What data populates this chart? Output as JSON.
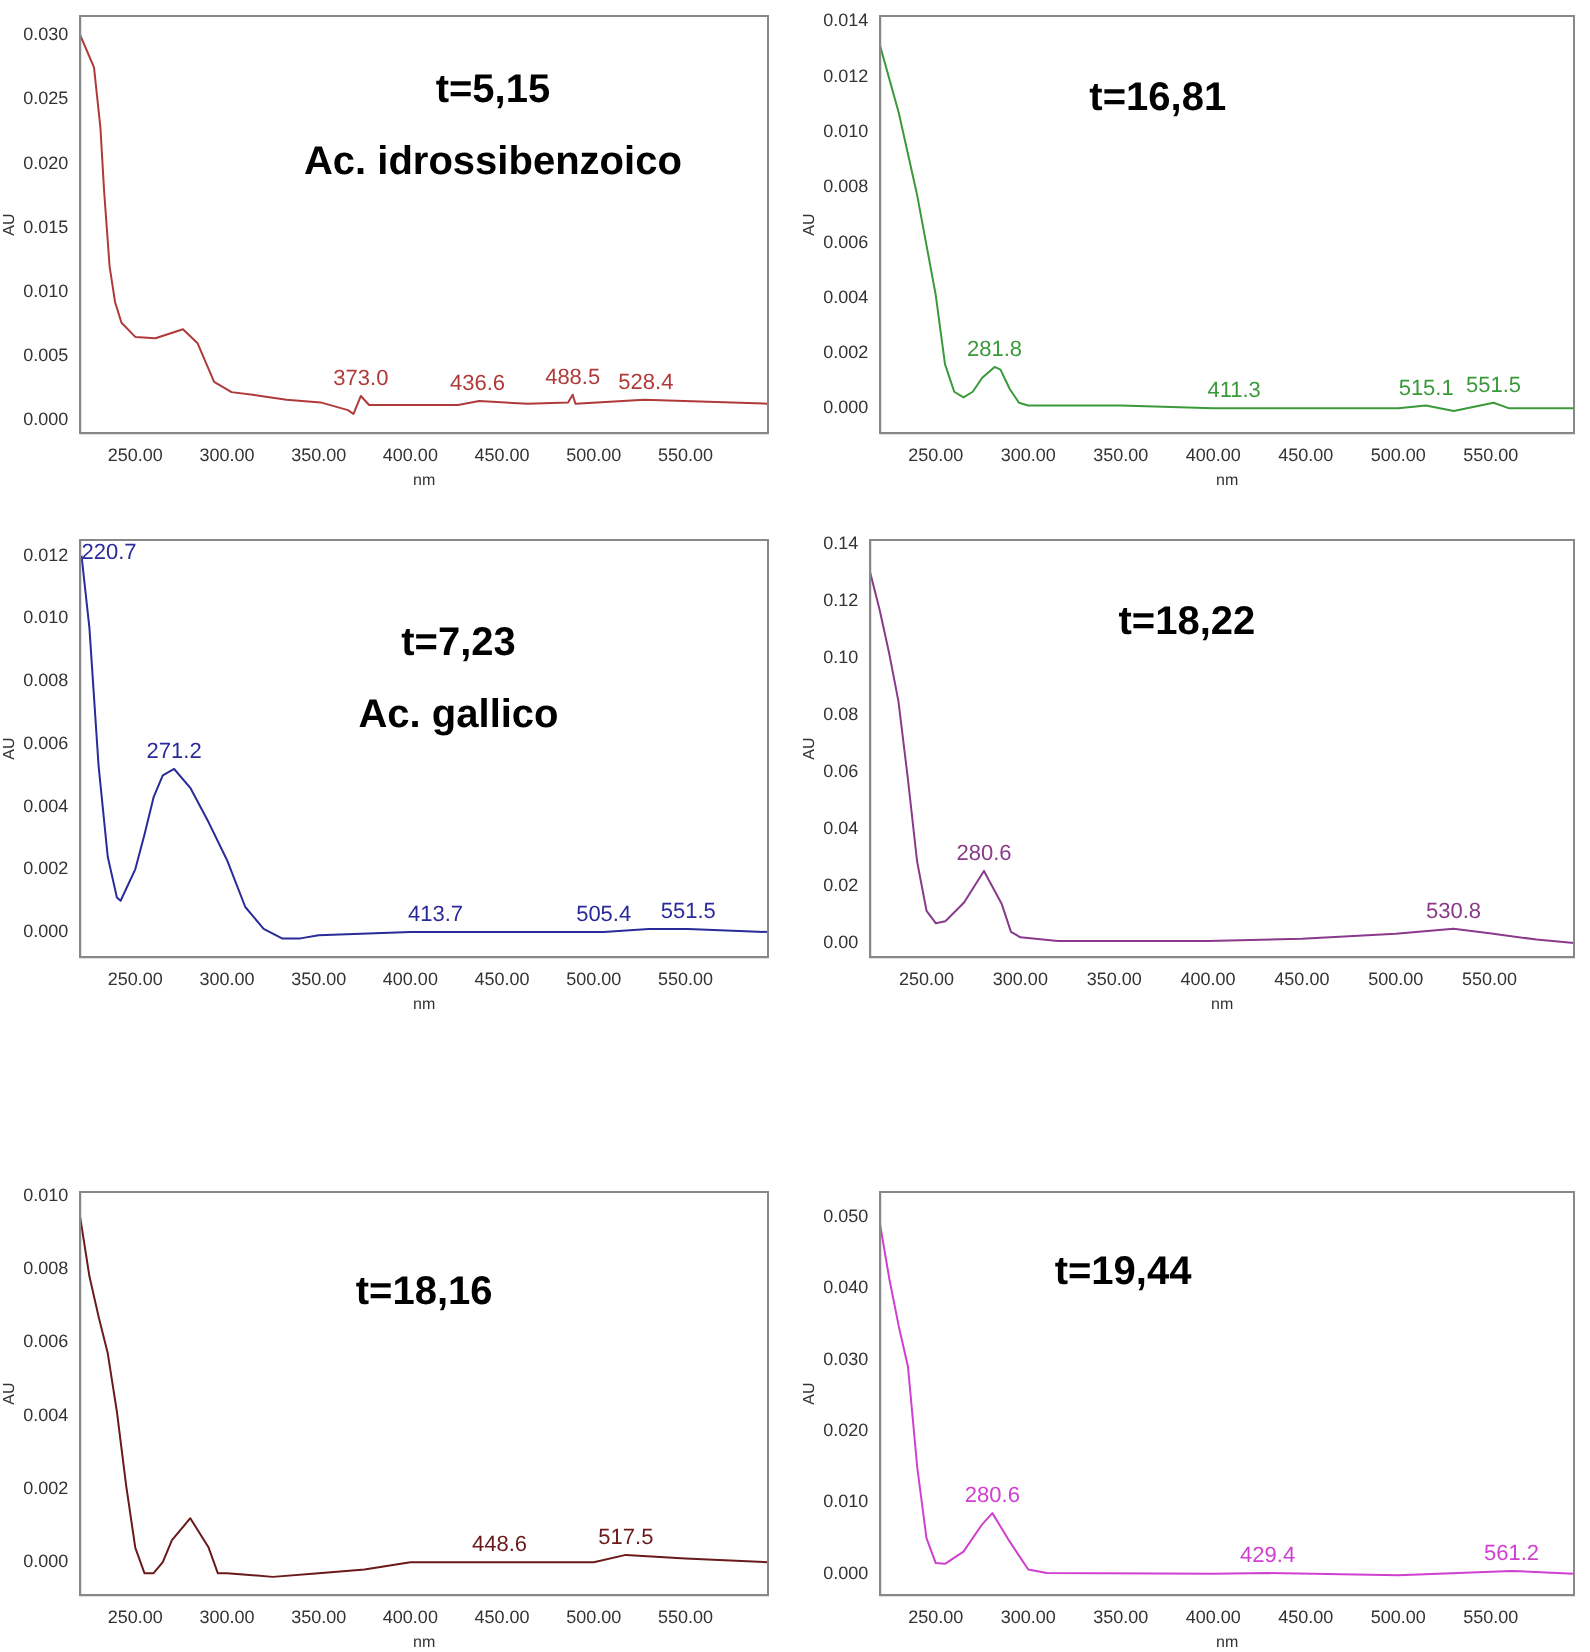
{
  "chart_data": [
    {
      "type": "line",
      "xlabel": "nm",
      "ylabel": "AU",
      "grid": false,
      "legend": false,
      "marker": "none",
      "xlim": [
        220,
        595
      ],
      "ylim": [
        -0.001,
        0.0315
      ],
      "xticks": [
        {
          "value": 250,
          "label": "250.00"
        },
        {
          "value": 300,
          "label": "300.00"
        },
        {
          "value": 350,
          "label": "350.00"
        },
        {
          "value": 400,
          "label": "400.00"
        },
        {
          "value": 450,
          "label": "450.00"
        },
        {
          "value": 500,
          "label": "500.00"
        },
        {
          "value": 550,
          "label": "550.00"
        }
      ],
      "yticks": [
        {
          "value": 0,
          "label": "0.000"
        },
        {
          "value": 0.005,
          "label": "0.005"
        },
        {
          "value": 0.01,
          "label": "0.010"
        },
        {
          "value": 0.015,
          "label": "0.015"
        },
        {
          "value": 0.02,
          "label": "0.020"
        },
        {
          "value": 0.025,
          "label": "0.025"
        },
        {
          "value": 0.03,
          "label": "0.030"
        }
      ],
      "annotations": [
        "t=5,15",
        "Ac. idrossibenzoico",
        {
          "text": "373.0",
          "x": 373,
          "y": 0.0019
        },
        {
          "text": "436.6",
          "x": 436.6,
          "y": 0.0015
        },
        {
          "text": "488.5",
          "x": 488.5,
          "y": 0.002
        },
        {
          "text": "528.4",
          "x": 528.4,
          "y": 0.0016
        }
      ],
      "series": [
        {
          "color": "#b03a3a",
          "x": [
            220,
            227.5,
            231,
            233,
            236,
            239,
            242.5,
            250,
            261,
            276,
            284,
            293,
            302.5,
            314,
            332.5,
            351,
            366,
            369,
            373,
            377.5,
            426,
            437.5,
            464,
            486,
            488.5,
            490,
            527.5,
            595
          ],
          "values": [
            0.03,
            0.0275,
            0.0228,
            0.0179,
            0.012,
            0.0092,
            0.0076,
            0.0065,
            0.0064,
            0.0071,
            0.006,
            0.003,
            0.0022,
            0.002,
            0.0016,
            0.0014,
            0.0008,
            0.0005,
            0.0019,
            0.0012,
            0.0012,
            0.0015,
            0.0013,
            0.0014,
            0.002,
            0.0013,
            0.0016,
            0.0013
          ]
        }
      ]
    },
    {
      "type": "line",
      "xlabel": "nm",
      "ylabel": "AU",
      "grid": false,
      "legend": false,
      "marker": "none",
      "xlim": [
        220,
        595
      ],
      "ylim": [
        -0.0009,
        0.0142
      ],
      "xticks": [
        {
          "value": 250,
          "label": "250.00"
        },
        {
          "value": 300,
          "label": "300.00"
        },
        {
          "value": 350,
          "label": "350.00"
        },
        {
          "value": 400,
          "label": "400.00"
        },
        {
          "value": 450,
          "label": "450.00"
        },
        {
          "value": 500,
          "label": "500.00"
        },
        {
          "value": 550,
          "label": "550.00"
        }
      ],
      "yticks": [
        {
          "value": 0,
          "label": "0.000"
        },
        {
          "value": 0.002,
          "label": "0.002"
        },
        {
          "value": 0.004,
          "label": "0.004"
        },
        {
          "value": 0.006,
          "label": "0.006"
        },
        {
          "value": 0.008,
          "label": "0.008"
        },
        {
          "value": 0.01,
          "label": "0.010"
        },
        {
          "value": 0.012,
          "label": "0.012"
        },
        {
          "value": 0.014,
          "label": "0.014"
        }
      ],
      "annotations": [
        "t=16,81",
        {
          "text": "281.8",
          "x": 281.8,
          "y": 0.0015
        },
        {
          "text": "411.3",
          "x": 411.3,
          "y": 0
        },
        {
          "text": "515.1",
          "x": 515.1,
          "y": 0.0001
        },
        {
          "text": "551.5",
          "x": 551.5,
          "y": 0.0002
        }
      ],
      "series": [
        {
          "color": "#3a9a3a",
          "x": [
            220,
            230,
            240,
            250,
            255,
            260,
            265,
            270,
            275,
            281.8,
            285,
            290,
            295,
            300,
            350,
            400,
            450,
            500,
            515,
            530,
            551.5,
            560,
            595
          ],
          "values": [
            0.0131,
            0.0107,
            0.0077,
            0.0041,
            0.0016,
            0.0006,
            0.0004,
            0.0006,
            0.0011,
            0.0015,
            0.0014,
            0.0007,
            0.0002,
            0.0001,
            0.0001,
            0,
            0,
            0,
            0.0001,
            -0.0001,
            0.0002,
            0,
            0
          ]
        }
      ]
    },
    {
      "type": "line",
      "xlabel": "nm",
      "ylabel": "AU",
      "grid": false,
      "legend": false,
      "marker": "none",
      "xlim": [
        220,
        595
      ],
      "ylim": [
        -0.0008,
        0.0125
      ],
      "xticks": [
        {
          "value": 250,
          "label": "250.00"
        },
        {
          "value": 300,
          "label": "300.00"
        },
        {
          "value": 350,
          "label": "350.00"
        },
        {
          "value": 400,
          "label": "400.00"
        },
        {
          "value": 450,
          "label": "450.00"
        },
        {
          "value": 500,
          "label": "500.00"
        },
        {
          "value": 550,
          "label": "550.00"
        }
      ],
      "yticks": [
        {
          "value": 0,
          "label": "0.000"
        },
        {
          "value": 0.002,
          "label": "0.002"
        },
        {
          "value": 0.004,
          "label": "0.004"
        },
        {
          "value": 0.006,
          "label": "0.006"
        },
        {
          "value": 0.008,
          "label": "0.008"
        },
        {
          "value": 0.01,
          "label": "0.010"
        },
        {
          "value": 0.012,
          "label": "0.012"
        }
      ],
      "annotations": [
        "t=7,23",
        "Ac. gallico",
        {
          "text": "220.7",
          "x": 220.7,
          "y": 0.012
        },
        {
          "text": "271.2",
          "x": 271.2,
          "y": 0.0052
        },
        {
          "text": "413.7",
          "x": 413.7,
          "y": 0
        },
        {
          "text": "505.4",
          "x": 505.4,
          "y": 0
        },
        {
          "text": "551.5",
          "x": 551.5,
          "y": 0.0001
        }
      ],
      "series": [
        {
          "color": "#2a2a9a",
          "x": [
            220.7,
            225,
            230,
            235,
            240,
            242,
            250,
            255,
            260,
            265,
            271.2,
            280,
            290,
            300,
            310,
            320,
            330,
            340,
            350,
            400,
            413.7,
            450,
            500,
            505.4,
            530,
            551.5,
            595
          ],
          "values": [
            0.012,
            0.0097,
            0.0053,
            0.0024,
            0.0011,
            0.001,
            0.002,
            0.0031,
            0.0043,
            0.005,
            0.0052,
            0.0046,
            0.0035,
            0.0023,
            0.0008,
            0.0001,
            -0.0002,
            -0.0002,
            -0.0001,
            0,
            0,
            0,
            0,
            0,
            0.0001,
            0.0001,
            0
          ]
        }
      ]
    },
    {
      "type": "line",
      "xlabel": "nm",
      "ylabel": "AU",
      "grid": false,
      "legend": false,
      "marker": "none",
      "xlim": [
        220,
        595
      ],
      "ylim": [
        -0.005,
        0.1415
      ],
      "xticks": [
        {
          "value": 250,
          "label": "250.00"
        },
        {
          "value": 300,
          "label": "300.00"
        },
        {
          "value": 350,
          "label": "350.00"
        },
        {
          "value": 400,
          "label": "400.00"
        },
        {
          "value": 450,
          "label": "450.00"
        },
        {
          "value": 500,
          "label": "500.00"
        },
        {
          "value": 550,
          "label": "550.00"
        }
      ],
      "yticks": [
        {
          "value": 0,
          "label": "0.00"
        },
        {
          "value": 0.02,
          "label": "0.02"
        },
        {
          "value": 0.04,
          "label": "0.04"
        },
        {
          "value": 0.06,
          "label": "0.06"
        },
        {
          "value": 0.08,
          "label": "0.08"
        },
        {
          "value": 0.1,
          "label": "0.10"
        },
        {
          "value": 0.12,
          "label": "0.12"
        },
        {
          "value": 0.14,
          "label": "0.14"
        }
      ],
      "annotations": [
        "t=18,22",
        {
          "text": "280.6",
          "x": 280.6,
          "y": 0.0253
        },
        {
          "text": "530.8",
          "x": 530.8,
          "y": 0.005
        }
      ],
      "series": [
        {
          "color": "#8a3a8a",
          "x": [
            220,
            225,
            230,
            235,
            240,
            245,
            250,
            255,
            260,
            270,
            280.6,
            290,
            295,
            300,
            320,
            400,
            450,
            500,
            530.8,
            550,
            575,
            595
          ],
          "values": [
            0.13,
            0.117,
            0.102,
            0.085,
            0.058,
            0.0285,
            0.0113,
            0.0069,
            0.0076,
            0.0142,
            0.0253,
            0.0138,
            0.0039,
            0.002,
            0.0007,
            0.0007,
            0.0015,
            0.0032,
            0.005,
            0.0034,
            0.0012,
            0
          ]
        }
      ]
    },
    {
      "type": "line",
      "xlabel": "nm",
      "ylabel": "AU",
      "grid": false,
      "legend": false,
      "marker": "none",
      "xlim": [
        220,
        595
      ],
      "ylim": [
        -0.0009,
        0.0101
      ],
      "xticks": [
        {
          "value": 250,
          "label": "250.00"
        },
        {
          "value": 300,
          "label": "300.00"
        },
        {
          "value": 350,
          "label": "350.00"
        },
        {
          "value": 400,
          "label": "400.00"
        },
        {
          "value": 450,
          "label": "450.00"
        },
        {
          "value": 500,
          "label": "500.00"
        },
        {
          "value": 550,
          "label": "550.00"
        }
      ],
      "yticks": [
        {
          "value": 0,
          "label": "0.000"
        },
        {
          "value": 0.002,
          "label": "0.002"
        },
        {
          "value": 0.004,
          "label": "0.004"
        },
        {
          "value": 0.006,
          "label": "0.006"
        },
        {
          "value": 0.008,
          "label": "0.008"
        },
        {
          "value": 0.01,
          "label": "0.010"
        }
      ],
      "annotations": [
        "t=18,16",
        {
          "text": "448.6",
          "x": 448.6,
          "y": 0
        },
        {
          "text": "517.5",
          "x": 517.5,
          "y": 0.0002
        }
      ],
      "series": [
        {
          "color": "#6a1a1a",
          "x": [
            220,
            225,
            230,
            235,
            240,
            245,
            250,
            255,
            260,
            265,
            270,
            280,
            290,
            295,
            300,
            325,
            350,
            375,
            400,
            448.6,
            500,
            517.5,
            550,
            595
          ],
          "values": [
            0.0094,
            0.0078,
            0.0067,
            0.0057,
            0.0041,
            0.0021,
            0.0004,
            -0.0003,
            -0.0003,
            0,
            0.0006,
            0.0012,
            0.0004,
            -0.0003,
            -0.0003,
            -0.0004,
            -0.0003,
            -0.0002,
            0,
            0,
            0,
            0.0002,
            0.0001,
            0
          ]
        }
      ]
    },
    {
      "type": "line",
      "xlabel": "nm",
      "ylabel": "AU",
      "grid": false,
      "legend": false,
      "marker": "none",
      "xlim": [
        220,
        595
      ],
      "ylim": [
        -0.003,
        0.0535
      ],
      "xticks": [
        {
          "value": 250,
          "label": "250.00"
        },
        {
          "value": 300,
          "label": "300.00"
        },
        {
          "value": 350,
          "label": "350.00"
        },
        {
          "value": 400,
          "label": "400.00"
        },
        {
          "value": 450,
          "label": "450.00"
        },
        {
          "value": 500,
          "label": "500.00"
        },
        {
          "value": 550,
          "label": "550.00"
        }
      ],
      "yticks": [
        {
          "value": 0,
          "label": "0.000"
        },
        {
          "value": 0.01,
          "label": "0.010"
        },
        {
          "value": 0.02,
          "label": "0.020"
        },
        {
          "value": 0.03,
          "label": "0.030"
        },
        {
          "value": 0.04,
          "label": "0.040"
        },
        {
          "value": 0.05,
          "label": "0.050"
        }
      ],
      "annotations": [
        "t=19,44",
        {
          "text": "280.6",
          "x": 280.6,
          "y": 0.0085
        },
        {
          "text": "429.4",
          "x": 429.4,
          "y": 0.0001
        },
        {
          "text": "561.2",
          "x": 561.2,
          "y": 0.0004
        }
      ],
      "series": [
        {
          "color": "#d040d0",
          "x": [
            220,
            225,
            230,
            235,
            240,
            245,
            250,
            255,
            265,
            275,
            280.6,
            290,
            300,
            310,
            400,
            429.4,
            500,
            561.2,
            595
          ],
          "values": [
            0.0488,
            0.0412,
            0.0347,
            0.029,
            0.0149,
            0.005,
            0.0015,
            0.0014,
            0.0031,
            0.0069,
            0.0085,
            0.0045,
            0.0006,
            0.0001,
            0,
            0.0001,
            -0.0002,
            0.0004,
            0
          ]
        }
      ]
    }
  ]
}
